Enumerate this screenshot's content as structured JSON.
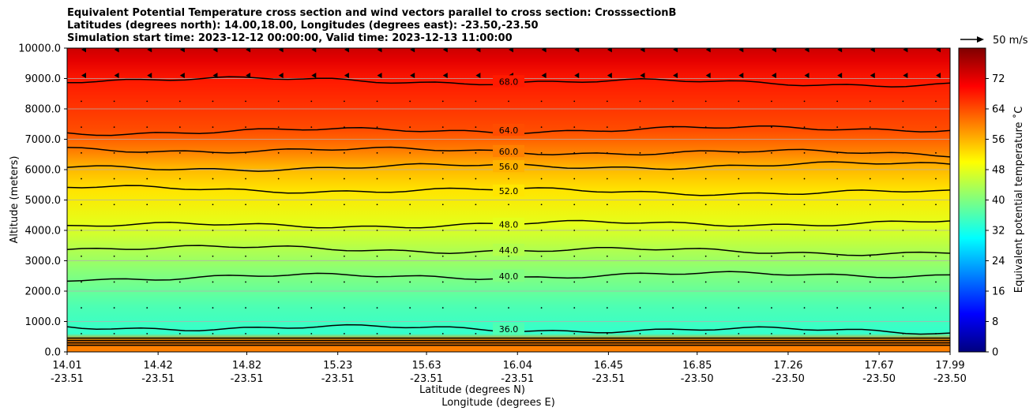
{
  "chart_data": {
    "type": "heatmap",
    "title_lines": [
      "Equivalent Potential Temperature cross section and wind vectors parallel to cross section: CrosssectionB",
      "Latitudes (degrees north): 14.00,18.00, Longitudes (degrees east): -23.50,-23.50",
      "Simulation start time: 2023-12-12 00:00:00, Valid time: 2023-12-13 11:00:00"
    ],
    "xlabel_lat": "Latitude (degrees N)",
    "xlabel_lon": "Longitude (degrees E)",
    "ylabel": "Altitude (meters)",
    "colorbar_label": "Equivalent potential temperature ˚C",
    "quiver_key_label": "50 m/s",
    "ylim": [
      0,
      10000
    ],
    "xlim": [
      14.01,
      17.99
    ],
    "grid": "horizontal",
    "colorscale": "jet",
    "clim": [
      0,
      80
    ],
    "y_ticks": [
      {
        "value": 0,
        "label": "0.0"
      },
      {
        "value": 1000,
        "label": "1000.0"
      },
      {
        "value": 2000,
        "label": "2000.0"
      },
      {
        "value": 3000,
        "label": "3000.0"
      },
      {
        "value": 4000,
        "label": "4000.0"
      },
      {
        "value": 5000,
        "label": "5000.0"
      },
      {
        "value": 6000,
        "label": "6000.0"
      },
      {
        "value": 7000,
        "label": "7000.0"
      },
      {
        "value": 8000,
        "label": "8000.0"
      },
      {
        "value": 9000,
        "label": "9000.0"
      },
      {
        "value": 10000,
        "label": "10000.0"
      }
    ],
    "x_ticks": [
      {
        "value": 14.01,
        "lat": "14.01",
        "lon": "-23.51"
      },
      {
        "value": 14.42,
        "lat": "14.42",
        "lon": "-23.51"
      },
      {
        "value": 14.82,
        "lat": "14.82",
        "lon": "-23.51"
      },
      {
        "value": 15.23,
        "lat": "15.23",
        "lon": "-23.51"
      },
      {
        "value": 15.63,
        "lat": "15.63",
        "lon": "-23.51"
      },
      {
        "value": 16.04,
        "lat": "16.04",
        "lon": "-23.51"
      },
      {
        "value": 16.45,
        "lat": "16.45",
        "lon": "-23.51"
      },
      {
        "value": 16.85,
        "lat": "16.85",
        "lon": "-23.50"
      },
      {
        "value": 17.26,
        "lat": "17.26",
        "lon": "-23.50"
      },
      {
        "value": 17.67,
        "lat": "17.67",
        "lon": "-23.50"
      },
      {
        "value": 17.99,
        "lat": "17.99",
        "lon": "-23.50"
      }
    ],
    "colorbar_ticks": [
      {
        "value": 0,
        "label": "0"
      },
      {
        "value": 8,
        "label": "8"
      },
      {
        "value": 16,
        "label": "16"
      },
      {
        "value": 24,
        "label": "24"
      },
      {
        "value": 32,
        "label": "32"
      },
      {
        "value": 40,
        "label": "40"
      },
      {
        "value": 48,
        "label": "48"
      },
      {
        "value": 56,
        "label": "56"
      },
      {
        "value": 64,
        "label": "64"
      },
      {
        "value": 72,
        "label": "72"
      }
    ],
    "contour_lines": [
      {
        "label": "36.0",
        "alt": 750
      },
      {
        "label": "40.0",
        "alt": 2500
      },
      {
        "label": "44.0",
        "alt": 3350
      },
      {
        "label": "48.0",
        "alt": 4200
      },
      {
        "label": "52.0",
        "alt": 5300
      },
      {
        "label": "56.0",
        "alt": 6100
      },
      {
        "label": "60.0",
        "alt": 6600
      },
      {
        "label": "64.0",
        "alt": 7300
      },
      {
        "label": "68.0",
        "alt": 8900
      }
    ],
    "profile": [
      {
        "alt": 0,
        "theta": 60
      },
      {
        "alt": 400,
        "theta": 58
      },
      {
        "alt": 600,
        "theta": 34
      },
      {
        "alt": 1500,
        "theta": 36
      },
      {
        "alt": 2500,
        "theta": 40
      },
      {
        "alt": 3400,
        "theta": 44
      },
      {
        "alt": 4200,
        "theta": 48
      },
      {
        "alt": 5300,
        "theta": 52
      },
      {
        "alt": 6100,
        "theta": 56
      },
      {
        "alt": 6600,
        "theta": 60
      },
      {
        "alt": 7300,
        "theta": 64
      },
      {
        "alt": 8900,
        "theta": 68
      },
      {
        "alt": 9600,
        "theta": 72
      },
      {
        "alt": 10000,
        "theta": 74
      }
    ]
  }
}
